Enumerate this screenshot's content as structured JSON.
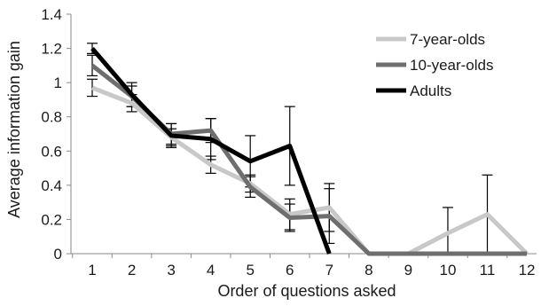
{
  "chart_data": {
    "type": "line",
    "title": "",
    "xlabel": "Order of questions asked",
    "ylabel": "Average information gain",
    "categories": [
      "1",
      "2",
      "3",
      "4",
      "5",
      "6",
      "7",
      "8",
      "9",
      "10",
      "11",
      "12"
    ],
    "ylim": [
      0,
      1.4
    ],
    "yticks": [
      "0",
      "0.2",
      "0.4",
      "0.6",
      "0.8",
      "1",
      "1.2",
      "1.4"
    ],
    "grid": false,
    "legend_position": "top-right",
    "series": [
      {
        "name": "7-year-olds",
        "color": "#c8c8c8",
        "values": [
          0.97,
          0.88,
          0.68,
          0.52,
          0.41,
          0.23,
          0.27,
          0,
          0,
          0.12,
          0.23,
          0
        ],
        "error": [
          0.05,
          0.05,
          0.05,
          0.05,
          0.05,
          0.09,
          0.14,
          0,
          0,
          0.15,
          0.23,
          0
        ]
      },
      {
        "name": "10-year-olds",
        "color": "#6e6e6e",
        "values": [
          1.1,
          0.92,
          0.7,
          0.72,
          0.39,
          0.21,
          0.22,
          0,
          0,
          0,
          0,
          0
        ],
        "error": [
          0.06,
          0.06,
          0.06,
          0.07,
          0.06,
          0.08,
          0.16,
          0,
          0,
          0,
          0,
          0
        ]
      },
      {
        "name": "Adults",
        "color": "#000000",
        "values": [
          1.2,
          0.93,
          0.69,
          0.67,
          0.54,
          0.63,
          0,
          null,
          null,
          null,
          null,
          null
        ],
        "error": [
          0.03,
          0.07,
          0.07,
          0.12,
          0.15,
          0.23,
          0,
          null,
          null,
          null,
          null,
          null
        ]
      }
    ]
  }
}
